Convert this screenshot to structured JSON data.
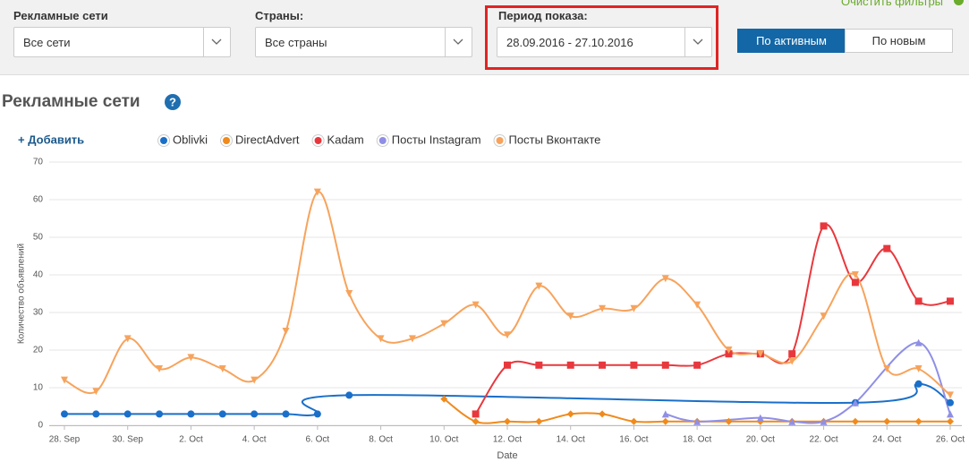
{
  "filters": [
    {
      "label": "Рекламные сети",
      "value": "Все сети"
    },
    {
      "label": "Страны:",
      "value": "Все страны"
    },
    {
      "label": "Период показа:",
      "value": "28.09.2016 - 27.10.2016"
    }
  ],
  "buttons": [
    "По активным",
    "По новым"
  ],
  "clear_filters": "Очистить фильтры",
  "section_title": "Рекламные сети",
  "add_link": "+ Добавить",
  "chart_data": {
    "type": "line",
    "y_title": "Количество объявлений",
    "x_title": "Date",
    "categories": [
      "28. Sep",
      null,
      "30. Sep",
      null,
      "2. Oct",
      null,
      "4. Oct",
      null,
      "6. Oct",
      null,
      "8. Oct",
      null,
      "10. Oct",
      null,
      "12. Oct",
      null,
      "14. Oct",
      null,
      "16. Oct",
      null,
      "18. Oct",
      null,
      "20. Oct",
      null,
      "22. Oct",
      null,
      "24. Oct",
      null,
      "26. Oct"
    ],
    "ylim": [
      0,
      70
    ],
    "yticks": [
      0,
      10,
      20,
      30,
      40,
      50,
      60,
      70
    ],
    "grid": true,
    "connect_nulls": true,
    "smooth": true,
    "series": [
      {
        "name": "Oblivki",
        "color": "#1a6fc9",
        "marker": "circle",
        "values": [
          3,
          3,
          3,
          3,
          3,
          3,
          3,
          3,
          3,
          8,
          null,
          null,
          null,
          null,
          null,
          null,
          null,
          null,
          null,
          null,
          null,
          null,
          null,
          null,
          null,
          6,
          null,
          11,
          6
        ]
      },
      {
        "name": "DirectAdvert",
        "color": "#f08a1c",
        "marker": "diamond",
        "values": [
          null,
          null,
          null,
          null,
          null,
          null,
          null,
          null,
          null,
          null,
          null,
          null,
          7,
          1,
          1,
          1,
          3,
          3,
          1,
          1,
          1,
          1,
          1,
          1,
          1,
          1,
          1,
          1,
          1
        ]
      },
      {
        "name": "Kadam",
        "color": "#e8383d",
        "marker": "square",
        "values": [
          null,
          null,
          null,
          null,
          null,
          null,
          null,
          null,
          null,
          null,
          null,
          null,
          null,
          3,
          16,
          16,
          16,
          16,
          16,
          16,
          16,
          19,
          19,
          19,
          53,
          38,
          47,
          33,
          33
        ]
      },
      {
        "name": "Посты Instagram",
        "color": "#8f8fe6",
        "marker": "triangle",
        "values": [
          null,
          null,
          null,
          null,
          null,
          null,
          null,
          null,
          null,
          null,
          null,
          null,
          null,
          null,
          null,
          null,
          null,
          null,
          null,
          3,
          1,
          null,
          2,
          1,
          1,
          6,
          null,
          22,
          3
        ]
      },
      {
        "name": "Посты Вконтакте",
        "color": "#f7a35c",
        "marker": "triangle-down",
        "values": [
          12,
          9,
          23,
          15,
          18,
          15,
          12,
          25,
          62,
          35,
          23,
          23,
          27,
          32,
          24,
          37,
          29,
          31,
          31,
          39,
          32,
          20,
          19,
          17,
          29,
          40,
          15,
          15,
          8
        ]
      }
    ]
  }
}
